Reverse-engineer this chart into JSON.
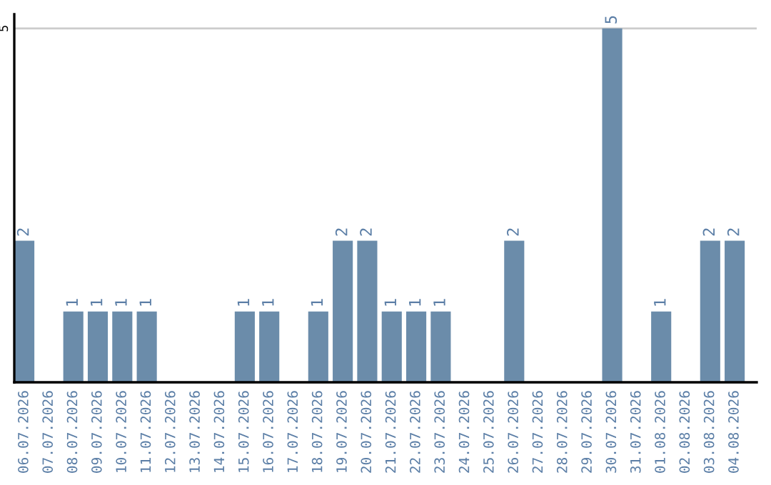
{
  "chart_data": {
    "type": "bar",
    "categories": [
      "06.07.2026",
      "07.07.2026",
      "08.07.2026",
      "09.07.2026",
      "10.07.2026",
      "11.07.2026",
      "12.07.2026",
      "13.07.2026",
      "14.07.2026",
      "15.07.2026",
      "16.07.2026",
      "17.07.2026",
      "18.07.2026",
      "19.07.2026",
      "20.07.2026",
      "21.07.2026",
      "22.07.2026",
      "23.07.2026",
      "24.07.2026",
      "25.07.2026",
      "26.07.2026",
      "27.07.2026",
      "28.07.2026",
      "29.07.2026",
      "30.07.2026",
      "31.07.2026",
      "01.08.2026",
      "02.08.2026",
      "03.08.2026",
      "04.08.2026"
    ],
    "values": [
      2,
      0,
      1,
      1,
      1,
      1,
      0,
      0,
      0,
      1,
      1,
      0,
      1,
      2,
      2,
      1,
      1,
      1,
      0,
      0,
      2,
      0,
      0,
      0,
      5,
      0,
      1,
      0,
      2,
      2
    ],
    "value_labels": [
      "2",
      null,
      "1",
      "1",
      "1",
      "1",
      null,
      null,
      null,
      "1",
      "1",
      null,
      "1",
      "2",
      "2",
      "1",
      "1",
      "1",
      null,
      null,
      "2",
      null,
      null,
      null,
      "5",
      null,
      "1",
      null,
      "2",
      "2"
    ],
    "color": "#6b8caa",
    "ylim": [
      0,
      5.2
    ],
    "yticks": [
      5
    ],
    "grid": "y"
  }
}
